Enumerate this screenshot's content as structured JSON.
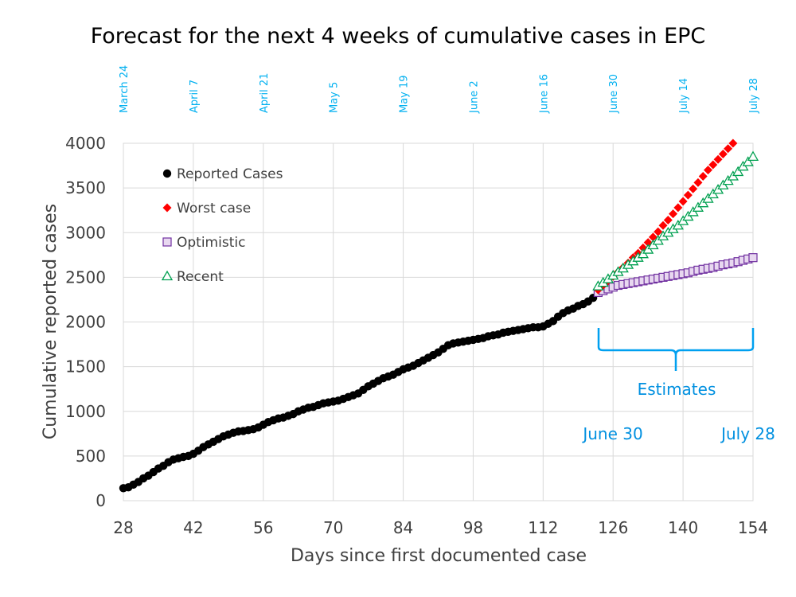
{
  "chart_data": {
    "type": "scatter",
    "title": "Forecast for the next 4 weeks of cumulative cases in EPC",
    "xlabel": "Days since first documented case",
    "ylabel": "Cumulative reported cases",
    "xlim": [
      28,
      154
    ],
    "ylim": [
      0,
      4000
    ],
    "x_ticks": [
      28,
      42,
      56,
      70,
      84,
      98,
      112,
      126,
      140,
      154
    ],
    "y_ticks": [
      0,
      500,
      1000,
      1500,
      2000,
      2500,
      3000,
      3500,
      4000
    ],
    "grid": true,
    "legend_position": "top-left",
    "top_date_labels": [
      {
        "day": 28,
        "label": "March 24"
      },
      {
        "day": 42,
        "label": "April 7"
      },
      {
        "day": 56,
        "label": "April 21"
      },
      {
        "day": 70,
        "label": "May 5"
      },
      {
        "day": 84,
        "label": "May 19"
      },
      {
        "day": 98,
        "label": "June 2"
      },
      {
        "day": 112,
        "label": "June 16"
      },
      {
        "day": 126,
        "label": "June 30"
      },
      {
        "day": 140,
        "label": "July 14"
      },
      {
        "day": 154,
        "label": "July 28"
      }
    ],
    "annotations": {
      "estimates": "Estimates",
      "start": "June 30",
      "end": "July 28"
    },
    "series": [
      {
        "name": "Reported Cases",
        "color": "#000000",
        "marker": "circle",
        "x": [
          28,
          29,
          30,
          31,
          32,
          33,
          34,
          35,
          36,
          37,
          38,
          39,
          40,
          41,
          42,
          43,
          44,
          45,
          46,
          47,
          48,
          49,
          50,
          51,
          52,
          53,
          54,
          55,
          56,
          57,
          58,
          59,
          60,
          61,
          62,
          63,
          64,
          65,
          66,
          67,
          68,
          69,
          70,
          71,
          72,
          73,
          74,
          75,
          76,
          77,
          78,
          79,
          80,
          81,
          82,
          83,
          84,
          85,
          86,
          87,
          88,
          89,
          90,
          91,
          92,
          93,
          94,
          95,
          96,
          97,
          98,
          99,
          100,
          101,
          102,
          103,
          104,
          105,
          106,
          107,
          108,
          109,
          110,
          111,
          112,
          113,
          114,
          115,
          116,
          117,
          118,
          119,
          120,
          121,
          122,
          123
        ],
        "values": [
          140,
          150,
          180,
          210,
          250,
          280,
          320,
          360,
          390,
          430,
          460,
          475,
          490,
          500,
          525,
          560,
          600,
          630,
          660,
          690,
          720,
          740,
          760,
          775,
          780,
          790,
          800,
          820,
          850,
          880,
          900,
          920,
          930,
          950,
          970,
          1000,
          1020,
          1040,
          1050,
          1070,
          1090,
          1100,
          1110,
          1120,
          1140,
          1160,
          1180,
          1200,
          1240,
          1280,
          1310,
          1340,
          1370,
          1390,
          1410,
          1440,
          1470,
          1490,
          1510,
          1540,
          1570,
          1600,
          1630,
          1660,
          1700,
          1740,
          1760,
          1770,
          1780,
          1790,
          1800,
          1810,
          1820,
          1840,
          1850,
          1860,
          1880,
          1890,
          1900,
          1910,
          1920,
          1930,
          1940,
          1940,
          1950,
          1980,
          2010,
          2060,
          2100,
          2130,
          2150,
          2180,
          2200,
          2230,
          2270,
          2330
        ]
      },
      {
        "name": "Worst case",
        "color": "#ff0000",
        "marker": "diamond",
        "x": [
          123,
          124,
          125,
          126,
          127,
          128,
          129,
          130,
          131,
          132,
          133,
          134,
          135,
          136,
          137,
          138,
          139,
          140,
          141,
          142,
          143,
          144,
          145,
          146,
          147,
          148,
          149,
          150
        ],
        "values": [
          2360,
          2410,
          2460,
          2510,
          2560,
          2610,
          2660,
          2720,
          2770,
          2830,
          2890,
          2950,
          3010,
          3080,
          3140,
          3210,
          3280,
          3350,
          3420,
          3490,
          3560,
          3630,
          3700,
          3760,
          3820,
          3880,
          3940,
          4000
        ]
      },
      {
        "name": "Optimistic",
        "color": "#7030a0",
        "marker": "square",
        "x": [
          123,
          124,
          125,
          126,
          127,
          128,
          129,
          130,
          131,
          132,
          133,
          134,
          135,
          136,
          137,
          138,
          139,
          140,
          141,
          142,
          143,
          144,
          145,
          146,
          147,
          148,
          149,
          150,
          151,
          152,
          153,
          154
        ],
        "values": [
          2330,
          2350,
          2370,
          2390,
          2410,
          2420,
          2430,
          2440,
          2450,
          2460,
          2470,
          2480,
          2490,
          2500,
          2510,
          2520,
          2530,
          2540,
          2550,
          2565,
          2580,
          2590,
          2600,
          2610,
          2625,
          2640,
          2650,
          2660,
          2675,
          2690,
          2705,
          2720
        ]
      },
      {
        "name": "Recent",
        "color": "#00a050",
        "marker": "triangle",
        "x": [
          123,
          124,
          125,
          126,
          127,
          128,
          129,
          130,
          131,
          132,
          133,
          134,
          135,
          136,
          137,
          138,
          139,
          140,
          141,
          142,
          143,
          144,
          145,
          146,
          147,
          148,
          149,
          150,
          151,
          152,
          153,
          154
        ],
        "values": [
          2400,
          2440,
          2480,
          2520,
          2560,
          2600,
          2640,
          2680,
          2720,
          2760,
          2810,
          2860,
          2910,
          2960,
          3000,
          3040,
          3080,
          3130,
          3180,
          3230,
          3280,
          3330,
          3380,
          3430,
          3480,
          3530,
          3580,
          3630,
          3680,
          3740,
          3790,
          3850
        ]
      }
    ]
  }
}
